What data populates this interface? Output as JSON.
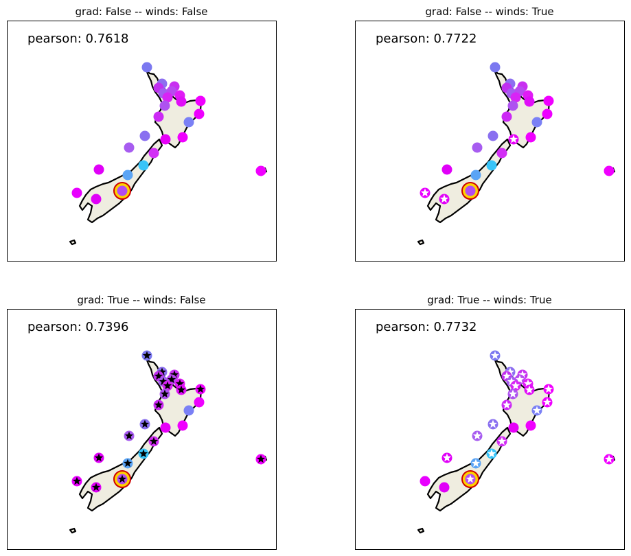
{
  "panels": [
    {
      "title": "grad: False -- winds: False",
      "stat": "pearson:  0.7618",
      "marker": "none"
    },
    {
      "title": "grad: False -- winds: True",
      "stat": "pearson:  0.7722",
      "marker": "partial"
    },
    {
      "title": "grad: True -- winds: False",
      "stat": "pearson:  0.7396",
      "marker": "all-black"
    },
    {
      "title": "grad: True -- winds: True",
      "stat": "pearson:  0.7732",
      "marker": "mostly-white"
    }
  ],
  "colors": {
    "land": "#efede0",
    "target_ring": "#cc0000",
    "target_fill": "#ffd200",
    "star_black": "#000000",
    "star_white": "#ffffff"
  },
  "stations": [
    {
      "id": "s1",
      "color": "#7b78f0"
    },
    {
      "id": "s2",
      "color": "#8d6ff0"
    },
    {
      "id": "s3",
      "color": "#c030f0"
    },
    {
      "id": "s4",
      "color": "#c830f0"
    },
    {
      "id": "s5",
      "color": "#a55cf0"
    },
    {
      "id": "s6",
      "color": "#b84af0"
    },
    {
      "id": "s7",
      "color": "#e01cf5"
    },
    {
      "id": "s8",
      "color": "#d824f5"
    },
    {
      "id": "s9",
      "color": "#ae52f0"
    },
    {
      "id": "s10",
      "color": "#e00ef8"
    },
    {
      "id": "s11",
      "color": "#f000ff"
    },
    {
      "id": "s12",
      "color": "#cc2af5"
    },
    {
      "id": "s13",
      "color": "#ee00ff"
    },
    {
      "id": "s14",
      "color": "#7a80f5"
    },
    {
      "id": "s15",
      "color": "#8a70f0"
    },
    {
      "id": "s16",
      "color": "#e600f8"
    },
    {
      "id": "s17",
      "color": "#f000ff"
    },
    {
      "id": "s18",
      "color": "#a75cf0"
    },
    {
      "id": "s19",
      "color": "#d22ef5"
    },
    {
      "id": "s20",
      "color": "#38c4f8"
    },
    {
      "id": "s21",
      "color": "#e000f8"
    },
    {
      "id": "s22",
      "color": "#5aa4f5"
    },
    {
      "id": "s23",
      "color": "#b24cf0"
    },
    {
      "id": "s24",
      "color": "#e800ff"
    },
    {
      "id": "s25",
      "color": "#e000f8"
    },
    {
      "id": "s26",
      "color": "#f000ff"
    }
  ]
}
